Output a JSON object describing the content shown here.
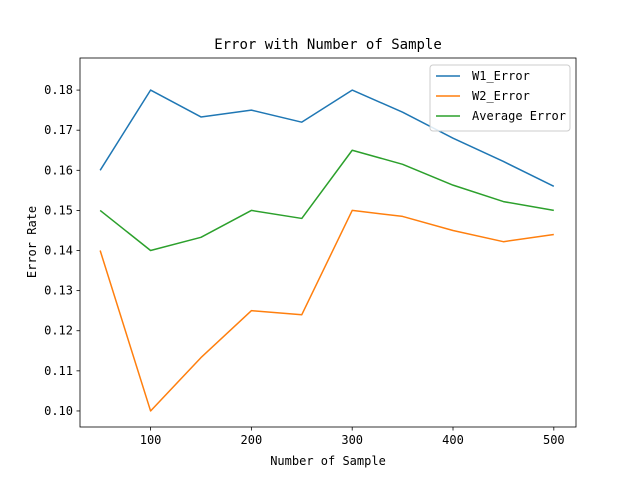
{
  "chart_data": {
    "type": "line",
    "title": "Error with Number of Sample",
    "xlabel": "Number of Sample",
    "ylabel": "Error Rate",
    "x": [
      50,
      100,
      150,
      200,
      250,
      300,
      350,
      400,
      450,
      500
    ],
    "xlim": [
      30,
      522
    ],
    "ylim": [
      0.096,
      0.188
    ],
    "xticks": [
      100,
      200,
      300,
      400,
      500
    ],
    "xtick_labels": [
      "100",
      "200",
      "300",
      "400",
      "500"
    ],
    "yticks": [
      0.1,
      0.11,
      0.12,
      0.13,
      0.14,
      0.15,
      0.16,
      0.17,
      0.18
    ],
    "ytick_labels": [
      "0.10",
      "0.11",
      "0.12",
      "0.13",
      "0.14",
      "0.15",
      "0.16",
      "0.17",
      "0.18"
    ],
    "grid": false,
    "legend_position": "top-right",
    "series": [
      {
        "name": "W1_Error",
        "color": "#1f77b4",
        "values": [
          0.16,
          0.18,
          0.1733,
          0.175,
          0.172,
          0.18,
          0.1745,
          0.168,
          0.1622,
          0.156
        ]
      },
      {
        "name": "W2_Error",
        "color": "#ff7f0e",
        "values": [
          0.14,
          0.1,
          0.1133,
          0.125,
          0.124,
          0.15,
          0.1485,
          0.145,
          0.1422,
          0.144
        ]
      },
      {
        "name": "Average Error",
        "color": "#2ca02c",
        "values": [
          0.15,
          0.14,
          0.1433,
          0.15,
          0.148,
          0.165,
          0.1615,
          0.1563,
          0.1522,
          0.15
        ]
      }
    ]
  }
}
